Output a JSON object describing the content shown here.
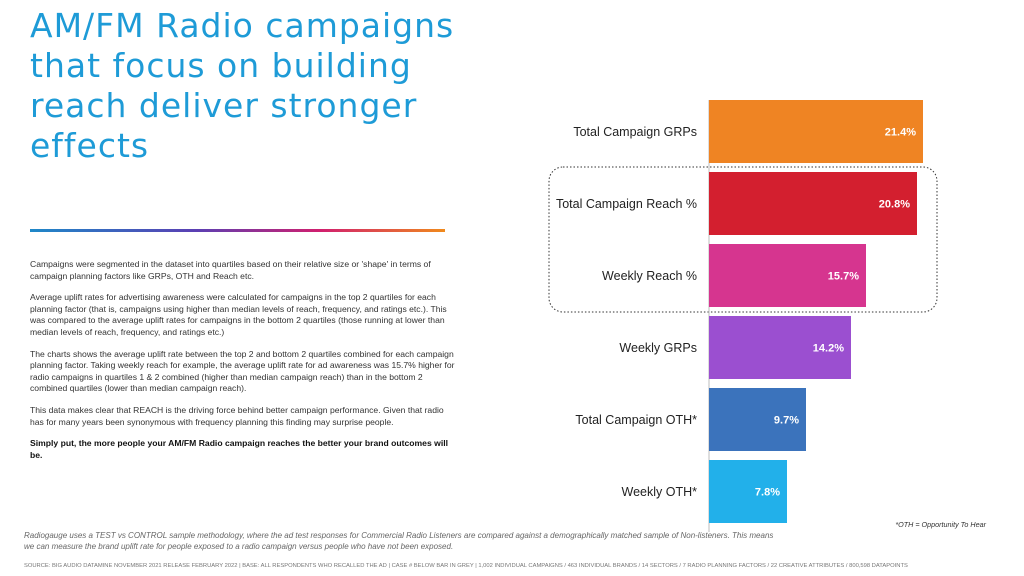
{
  "slide": {
    "title": "AM/FM Radio campaigns that focus on building reach deliver stronger effects",
    "paragraphs": [
      "Campaigns were segmented in the dataset into quartiles based on their relative size or 'shape' in terms of campaign planning factors like GRPs, OTH and Reach etc.",
      "Average uplift rates for advertising awareness were calculated for campaigns in the top 2 quartiles for each planning factor (that is, campaigns using higher than median levels of reach, frequency, and ratings etc.). This was compared to the average uplift rates for campaigns in the bottom 2 quartiles (those running at lower than median levels of reach, frequency, and ratings etc.)",
      "The  charts shows the average uplift rate between the top 2 and bottom 2 quartiles combined for each campaign planning factor. Taking weekly reach for example, the average uplift rate for ad awareness was 15.7% higher for radio campaigns in quartiles 1 & 2 combined (higher than median campaign reach) than in the bottom 2 combined quartiles (lower than median campaign reach).",
      "This data makes clear that REACH is the driving force behind better campaign performance. Given that radio has for many years been synonymous with frequency planning this finding may surprise people."
    ],
    "conclusion": "Simply put, the more people your AM/FM Radio campaign reaches the better your brand outcomes will be.",
    "footnote": "Radiogauge uses a TEST vs CONTROL sample methodology, where the ad test responses for Commercial Radio Listeners are compared against a demographically matched sample of Non-listeners. This means we can measure the brand uplift rate for people exposed to a radio campaign versus people who have not been exposed.",
    "oth_note": "*OTH = Opportunity To Hear",
    "source": "SOURCE: BIG AUDIO DATAMINE NOVEMBER 2021 RELEASE FEBRUARY 2022 | BASE: ALL RESPONDENTS WHO RECALLED THE AD | CASE # BELOW BAR IN GREY | 1,002 INDIVIDUAL CAMPAIGNS / 463 INDIVIDUAL BRANDS / 14 SECTORS / 7 RADIO PLANNING FACTORS / 22 CREATIVE ATTRIBUTES / 800,598 DATAPOINTS"
  },
  "chart_data": {
    "type": "bar",
    "orientation": "horizontal",
    "categories": [
      "Total Campaign GRPs",
      "Total Campaign Reach %",
      "Weekly Reach %",
      "Weekly GRPs",
      "Total Campaign OTH*",
      "Weekly OTH*"
    ],
    "values": [
      21.4,
      20.8,
      15.7,
      14.2,
      9.7,
      7.8
    ],
    "value_labels": [
      "21.4%",
      "20.8%",
      "15.7%",
      "14.2%",
      "9.7%",
      "7.8%"
    ],
    "colors": [
      "#ef8423",
      "#d31f2f",
      "#d6358f",
      "#9b4fd0",
      "#3b73bc",
      "#22b0ea"
    ],
    "highlighted": [
      "Total Campaign Reach %",
      "Weekly Reach %"
    ],
    "grid": false,
    "legend": "none"
  }
}
